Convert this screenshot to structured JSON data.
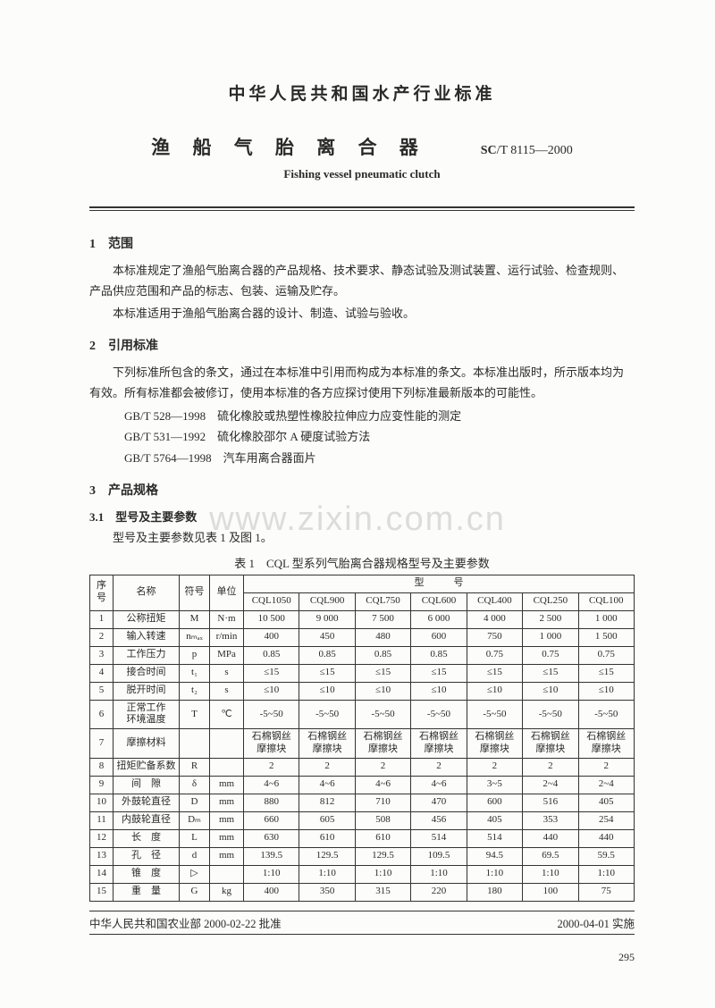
{
  "header": {
    "org": "中华人民共和国水产行业标准",
    "title": "渔 船 气 胎 离 合 器",
    "code_prefix": "SC",
    "code_body": "/T 8115—2000",
    "en_title": "Fishing vessel pneumatic clutch"
  },
  "watermark": "www.zixin.com.cn",
  "s1": {
    "h": "1　范围",
    "p1": "本标准规定了渔船气胎离合器的产品规格、技术要求、静态试验及测试装置、运行试验、检查规则、产品供应范围和产品的标志、包装、运输及贮存。",
    "p2": "本标准适用于渔船气胎离合器的设计、制造、试验与验收。"
  },
  "s2": {
    "h": "2　引用标准",
    "p1": "下列标准所包含的条文，通过在本标准中引用而构成为本标准的条文。本标准出版时，所示版本均为有效。所有标准都会被修订，使用本标准的各方应探讨使用下列标准最新版本的可能性。",
    "r1": "GB/T 528—1998　硫化橡胶或热塑性橡胶拉伸应力应变性能的测定",
    "r2": "GB/T 531—1992　硫化橡胶邵尔 A 硬度试验方法",
    "r3": "GB/T 5764—1998　汽车用离合器面片"
  },
  "s3": {
    "h": "3　产品规格",
    "sub": "3.1　型号及主要参数",
    "p1": "型号及主要参数见表 1 及图 1。"
  },
  "table": {
    "caption": "表 1　CQL 型系列气胎离合器规格型号及主要参数",
    "head": {
      "seq": "序号",
      "name": "名称",
      "sym": "符号",
      "unit": "单位",
      "model_group": "型　　　号"
    },
    "models": [
      "CQL1050",
      "CQL900",
      "CQL750",
      "CQL600",
      "CQL400",
      "CQL250",
      "CQL100"
    ],
    "rows": [
      {
        "n": "1",
        "name": "公称扭矩",
        "sym": "M",
        "unit": "N·m",
        "v": [
          "10 500",
          "9 000",
          "7 500",
          "6 000",
          "4 000",
          "2 500",
          "1 000"
        ]
      },
      {
        "n": "2",
        "name": "输入转速",
        "sym": "nₘₐₓ",
        "unit": "r/min",
        "v": [
          "400",
          "450",
          "480",
          "600",
          "750",
          "1 000",
          "1 500"
        ]
      },
      {
        "n": "3",
        "name": "工作压力",
        "sym": "p",
        "unit": "MPa",
        "v": [
          "0.85",
          "0.85",
          "0.85",
          "0.85",
          "0.75",
          "0.75",
          "0.75"
        ]
      },
      {
        "n": "4",
        "name": "接合时间",
        "sym": "t₁",
        "unit": "s",
        "v": [
          "≤15",
          "≤15",
          "≤15",
          "≤15",
          "≤15",
          "≤15",
          "≤15"
        ]
      },
      {
        "n": "5",
        "name": "脱开时间",
        "sym": "t₂",
        "unit": "s",
        "v": [
          "≤10",
          "≤10",
          "≤10",
          "≤10",
          "≤10",
          "≤10",
          "≤10"
        ]
      },
      {
        "n": "6",
        "name": "正常工作\n环境温度",
        "sym": "T",
        "unit": "℃",
        "v": [
          "-5~50",
          "-5~50",
          "-5~50",
          "-5~50",
          "-5~50",
          "-5~50",
          "-5~50"
        ]
      },
      {
        "n": "7",
        "name": "摩擦材料",
        "sym": "",
        "unit": "",
        "v": [
          "石棉钢丝\n摩擦块",
          "石棉钢丝\n摩擦块",
          "石棉钢丝\n摩擦块",
          "石棉钢丝\n摩擦块",
          "石棉钢丝\n摩擦块",
          "石棉钢丝\n摩擦块",
          "石棉钢丝\n摩擦块"
        ]
      },
      {
        "n": "8",
        "name": "扭矩贮备系数",
        "sym": "R",
        "unit": "",
        "v": [
          "2",
          "2",
          "2",
          "2",
          "2",
          "2",
          "2"
        ]
      },
      {
        "n": "9",
        "name": "间　隙",
        "sym": "δ",
        "unit": "mm",
        "v": [
          "4~6",
          "4~6",
          "4~6",
          "4~6",
          "3~5",
          "2~4",
          "2~4"
        ]
      },
      {
        "n": "10",
        "name": "外鼓轮直径",
        "sym": "D",
        "unit": "mm",
        "v": [
          "880",
          "812",
          "710",
          "470",
          "600",
          "516",
          "405"
        ]
      },
      {
        "n": "11",
        "name": "内鼓轮直径",
        "sym": "Dₘ",
        "unit": "mm",
        "v": [
          "660",
          "605",
          "508",
          "456",
          "405",
          "353",
          "254"
        ]
      },
      {
        "n": "12",
        "name": "长　度",
        "sym": "L",
        "unit": "mm",
        "v": [
          "630",
          "610",
          "610",
          "514",
          "514",
          "440",
          "440"
        ]
      },
      {
        "n": "13",
        "name": "孔　径",
        "sym": "d",
        "unit": "mm",
        "v": [
          "139.5",
          "129.5",
          "129.5",
          "109.5",
          "94.5",
          "69.5",
          "59.5"
        ]
      },
      {
        "n": "14",
        "name": "锥　度",
        "sym": "▷",
        "unit": "",
        "v": [
          "1:10",
          "1:10",
          "1:10",
          "1:10",
          "1:10",
          "1:10",
          "1:10"
        ]
      },
      {
        "n": "15",
        "name": "重　量",
        "sym": "G",
        "unit": "kg",
        "v": [
          "400",
          "350",
          "315",
          "220",
          "180",
          "100",
          "75"
        ]
      }
    ]
  },
  "footer": {
    "left": "中华人民共和国农业部 2000-02-22 批准",
    "right": "2000-04-01 实施"
  },
  "page": "295"
}
